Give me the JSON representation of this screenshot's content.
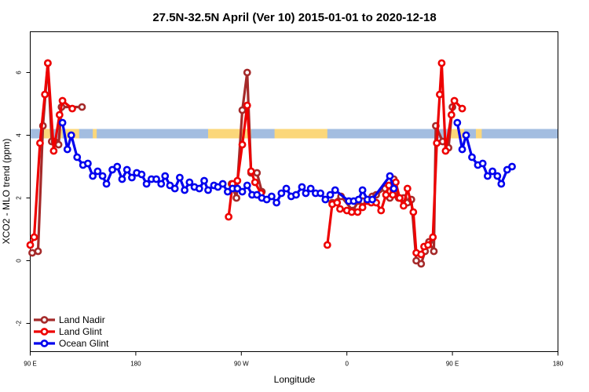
{
  "chart_data": {
    "type": "line",
    "title": "27.5N-32.5N April (Ver 10)   2015-01-01 to 2020-12-18",
    "xlabel": "Longitude",
    "ylabel": "XCO2 - MLO trend (ppm)",
    "xlim": [
      -90,
      180
    ],
    "ylim": [
      -2.9,
      7.3
    ],
    "x_ticks": [
      {
        "value": -90,
        "label": "90 E"
      },
      {
        "value": -36,
        "label": "180"
      },
      {
        "value": 18,
        "label": "90 W"
      },
      {
        "value": 72,
        "label": "0"
      },
      {
        "value": 126,
        "label": "90 E"
      },
      {
        "value": 180,
        "label": "180"
      }
    ],
    "y_ticks": [
      {
        "value": -2,
        "label": "-2"
      },
      {
        "value": 0,
        "label": "0"
      },
      {
        "value": 2,
        "label": "2"
      },
      {
        "value": 4,
        "label": "4"
      },
      {
        "value": 6,
        "label": "6"
      }
    ],
    "land_sea_band": {
      "y_range": [
        3.9,
        4.2
      ],
      "ocean_color": "#a3bde0",
      "land_color": "#fbd77a",
      "land_segments": [
        [
          -84,
          -78
        ],
        [
          -75,
          -73.5
        ],
        [
          -72,
          -65
        ],
        [
          -58,
          -56
        ],
        [
          1,
          23
        ],
        [
          35,
          62
        ],
        [
          124,
          132
        ],
        [
          138,
          141
        ]
      ]
    },
    "legend_position": "bottom-left",
    "series": [
      {
        "name": "Land Nadir",
        "color": "#a52a2a",
        "points": [
          [
            -89,
            0.25
          ],
          [
            -86,
            0.3
          ],
          [
            -83.5,
            4.3
          ],
          [
            -81,
            6.3
          ],
          [
            -79,
            3.8
          ],
          [
            -77.5,
            3.8
          ],
          [
            -75.5,
            3.7
          ],
          [
            -74,
            4.9
          ],
          [
            -63.5,
            4.9
          ],
          [
            13,
            2.45
          ],
          [
            15.5,
            2.0
          ],
          [
            18.5,
            4.8
          ],
          [
            21,
            6.0
          ],
          [
            23,
            2.8
          ],
          [
            26,
            2.8
          ],
          [
            28.5,
            2.2
          ],
          [
            64.5,
            1.85
          ],
          [
            69,
            2.05
          ],
          [
            75,
            1.6
          ],
          [
            78,
            1.9
          ],
          [
            80,
            1.9
          ],
          [
            82.5,
            1.9
          ],
          [
            85,
            2.05
          ],
          [
            87,
            2.1
          ],
          [
            91.5,
            2.3
          ],
          [
            94,
            2.0
          ],
          [
            96,
            2.6
          ],
          [
            98.5,
            2.0
          ],
          [
            101,
            2.0
          ],
          [
            103,
            1.85
          ],
          [
            105,
            1.95
          ],
          [
            107.5,
            0.0
          ],
          [
            110,
            -0.1
          ],
          [
            112,
            0.3
          ],
          [
            114,
            0.6
          ],
          [
            116.5,
            0.3
          ],
          [
            117.5,
            4.3
          ],
          [
            121,
            3.8
          ],
          [
            124,
            3.6
          ],
          [
            126,
            4.9
          ]
        ]
      },
      {
        "name": "Land Glint",
        "color": "#ee0000",
        "points": [
          [
            -90,
            0.5
          ],
          [
            -88,
            0.75
          ],
          [
            -85,
            3.75
          ],
          [
            -82.5,
            5.3
          ],
          [
            -81,
            6.3
          ],
          [
            -78,
            3.5
          ],
          [
            -75,
            4.65
          ],
          [
            -73.5,
            5.1
          ],
          [
            -68.5,
            4.85
          ],
          [
            11.5,
            1.4
          ],
          [
            13.5,
            2.45
          ],
          [
            16,
            2.55
          ],
          [
            18.5,
            3.7
          ],
          [
            21,
            4.95
          ],
          [
            23,
            2.85
          ],
          [
            25,
            2.5
          ],
          [
            28,
            2.15
          ],
          [
            62,
            0.5
          ],
          [
            64.5,
            1.8
          ],
          [
            67,
            1.85
          ],
          [
            68.5,
            1.65
          ],
          [
            72,
            1.6
          ],
          [
            74.5,
            1.55
          ],
          [
            77.5,
            1.55
          ],
          [
            80,
            1.7
          ],
          [
            82.5,
            1.9
          ],
          [
            84.5,
            1.85
          ],
          [
            87,
            1.85
          ],
          [
            89.5,
            1.6
          ],
          [
            92,
            2.1
          ],
          [
            93.5,
            2.4
          ],
          [
            95.5,
            2.1
          ],
          [
            97,
            2.5
          ],
          [
            99,
            2.0
          ],
          [
            101,
            1.75
          ],
          [
            103,
            2.3
          ],
          [
            106,
            1.55
          ],
          [
            107.5,
            0.25
          ],
          [
            110,
            0.2
          ],
          [
            111.5,
            0.45
          ],
          [
            113.5,
            0.5
          ],
          [
            116,
            0.75
          ],
          [
            118,
            3.75
          ],
          [
            119.5,
            5.3
          ],
          [
            120.5,
            6.3
          ],
          [
            122.5,
            3.5
          ],
          [
            125.5,
            4.65
          ],
          [
            127,
            5.1
          ],
          [
            131,
            4.85
          ]
        ]
      },
      {
        "name": "Ocean Glint",
        "color": "#0000ee",
        "points": [
          [
            -73.5,
            4.4
          ],
          [
            -71,
            3.55
          ],
          [
            -69,
            4.0
          ],
          [
            -66,
            3.3
          ],
          [
            -63,
            3.05
          ],
          [
            -60.5,
            3.1
          ],
          [
            -58,
            2.7
          ],
          [
            -55.5,
            2.85
          ],
          [
            -53,
            2.7
          ],
          [
            -51,
            2.45
          ],
          [
            -48,
            2.9
          ],
          [
            -45.5,
            3.0
          ],
          [
            -43,
            2.6
          ],
          [
            -40.5,
            2.9
          ],
          [
            -38,
            2.65
          ],
          [
            -35.5,
            2.8
          ],
          [
            -33,
            2.75
          ],
          [
            -30.5,
            2.45
          ],
          [
            -28,
            2.6
          ],
          [
            -25.5,
            2.6
          ],
          [
            -23,
            2.45
          ],
          [
            -21,
            2.7
          ],
          [
            -18.5,
            2.4
          ],
          [
            -16,
            2.3
          ],
          [
            -13.5,
            2.65
          ],
          [
            -11,
            2.25
          ],
          [
            -8.5,
            2.5
          ],
          [
            -6,
            2.35
          ],
          [
            -3.5,
            2.3
          ],
          [
            -1,
            2.55
          ],
          [
            1,
            2.25
          ],
          [
            4,
            2.4
          ],
          [
            6,
            2.35
          ],
          [
            8.5,
            2.45
          ],
          [
            11,
            2.2
          ],
          [
            13.5,
            2.3
          ],
          [
            16,
            2.3
          ],
          [
            18.5,
            2.2
          ],
          [
            21,
            2.4
          ],
          [
            23.5,
            2.1
          ],
          [
            26,
            2.1
          ],
          [
            28.5,
            2.0
          ],
          [
            31,
            1.95
          ],
          [
            33.5,
            2.05
          ],
          [
            36,
            1.85
          ],
          [
            38.5,
            2.15
          ],
          [
            41,
            2.3
          ],
          [
            43.5,
            2.05
          ],
          [
            46,
            2.1
          ],
          [
            49,
            2.35
          ],
          [
            51,
            2.15
          ],
          [
            53.5,
            2.3
          ],
          [
            56,
            2.15
          ],
          [
            58.5,
            2.15
          ],
          [
            61,
            1.95
          ],
          [
            63.5,
            2.1
          ],
          [
            66,
            2.25
          ],
          [
            73,
            1.9
          ],
          [
            75.5,
            1.9
          ],
          [
            78,
            1.95
          ],
          [
            80,
            2.25
          ],
          [
            82.5,
            1.95
          ],
          [
            85,
            1.95
          ],
          [
            94,
            2.7
          ],
          [
            96,
            2.3
          ],
          [
            128.5,
            4.4
          ],
          [
            131,
            3.55
          ],
          [
            133,
            4.0
          ],
          [
            136,
            3.3
          ],
          [
            139,
            3.05
          ],
          [
            141.5,
            3.1
          ],
          [
            144,
            2.7
          ],
          [
            146.5,
            2.85
          ],
          [
            149,
            2.7
          ],
          [
            151,
            2.45
          ],
          [
            154,
            2.9
          ],
          [
            156.5,
            3.0
          ]
        ]
      }
    ]
  }
}
